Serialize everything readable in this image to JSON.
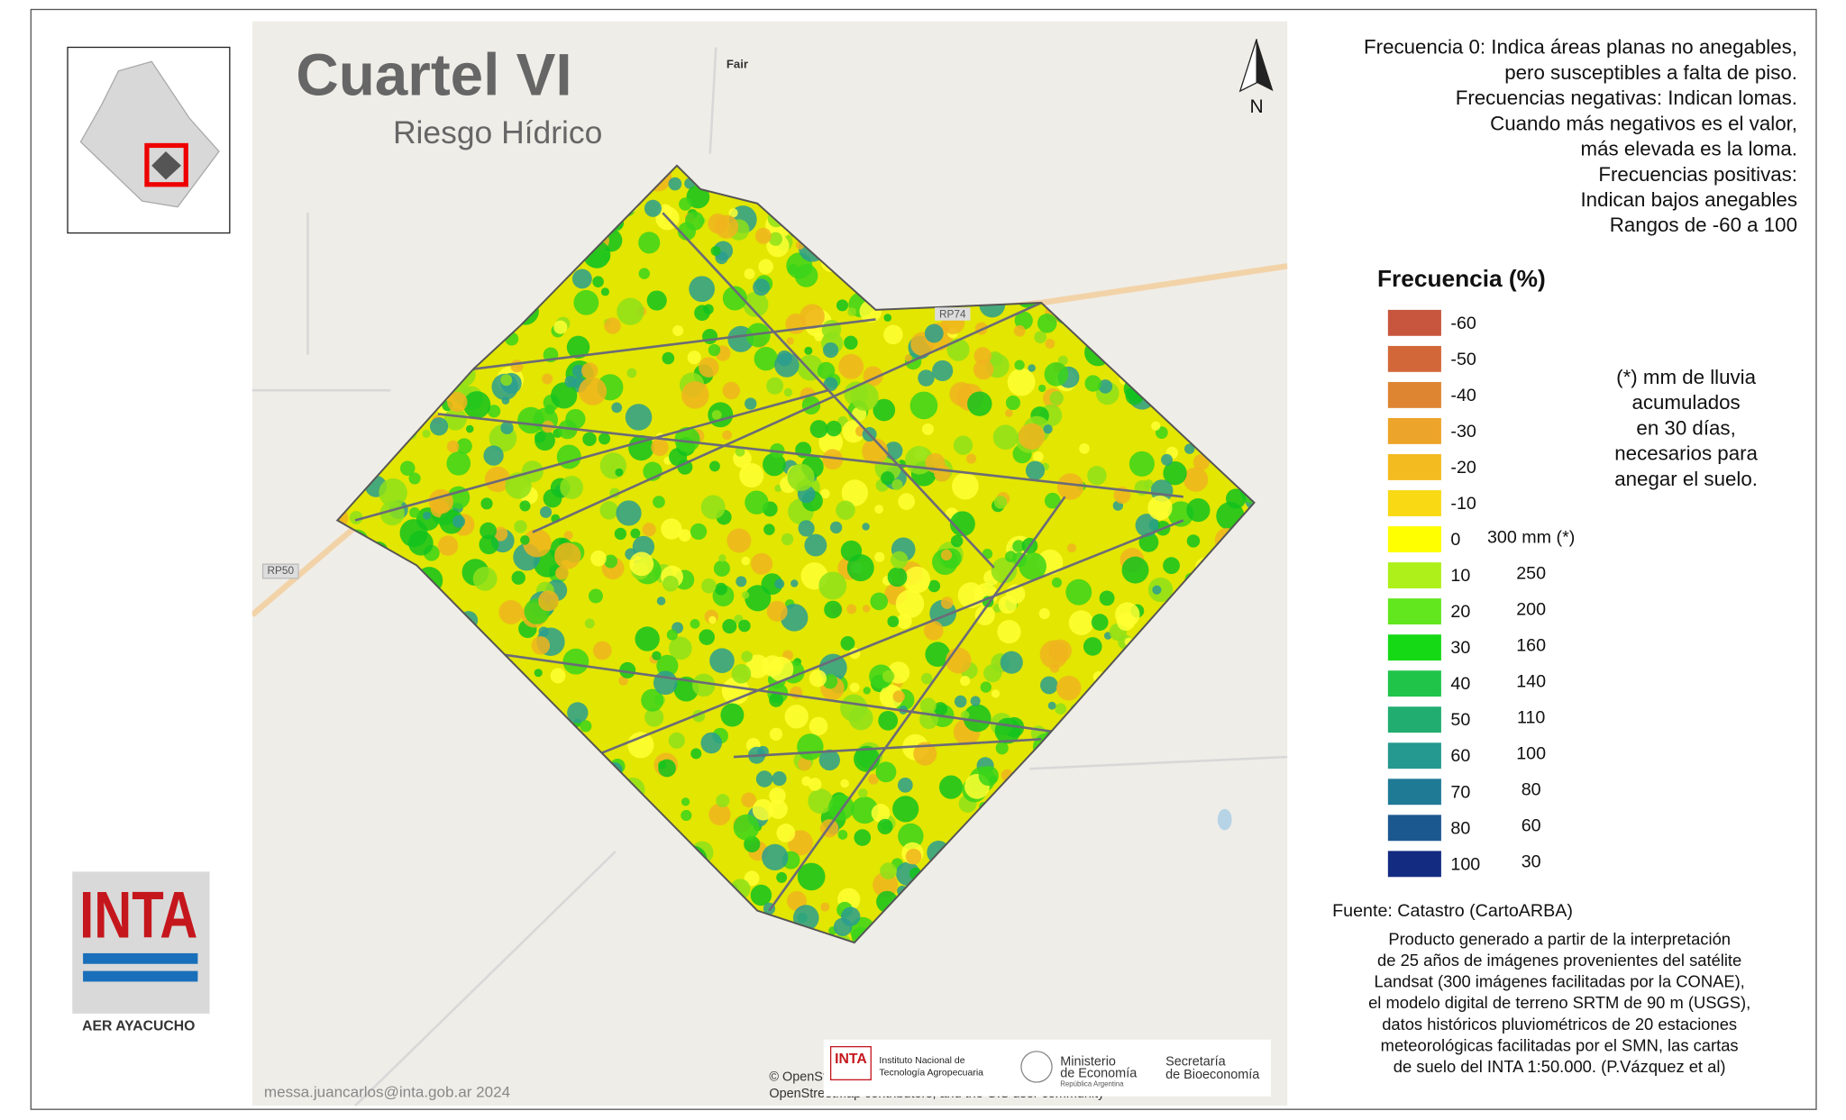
{
  "header": {
    "title": "Cuartel VI",
    "subtitle": "Riesgo Hídrico"
  },
  "map": {
    "place": "Fair",
    "north": "N",
    "roads": [
      "RP74",
      "RP50"
    ],
    "attribution": [
      "© OpenStreetMap",
      "OpenStreetMap contributors, and the GIS user community"
    ],
    "credit": "messa.juancarlos@inta.gob.ar 2024"
  },
  "description": [
    "Frecuencia 0: Indica áreas planas no anegables,",
    "pero susceptibles a falta de piso.",
    "Frecuencias negativas: Indican lomas.",
    "Cuando más negativos es el valor,",
    "más elevada es la loma.",
    "Frecuencias positivas:",
    "Indican bajos anegables",
    "Rangos de -60 a 100"
  ],
  "legend": {
    "title": "Frecuencia (%)",
    "items": [
      {
        "label": -60,
        "mm": null,
        "color": "#c8553d"
      },
      {
        "label": -50,
        "mm": null,
        "color": "#d2683a"
      },
      {
        "label": -40,
        "mm": null,
        "color": "#de8532"
      },
      {
        "label": -30,
        "mm": null,
        "color": "#eda42a"
      },
      {
        "label": -20,
        "mm": null,
        "color": "#f3bb1f"
      },
      {
        "label": -10,
        "mm": null,
        "color": "#f8d914"
      },
      {
        "label": 0,
        "mm": "300 mm (*)",
        "color": "#ffff00"
      },
      {
        "label": 10,
        "mm": 250,
        "color": "#aef01a"
      },
      {
        "label": 20,
        "mm": 200,
        "color": "#62e61e"
      },
      {
        "label": 30,
        "mm": 160,
        "color": "#16d916"
      },
      {
        "label": 40,
        "mm": 140,
        "color": "#1fc449"
      },
      {
        "label": 50,
        "mm": 110,
        "color": "#21ad70"
      },
      {
        "label": 60,
        "mm": 100,
        "color": "#25988f"
      },
      {
        "label": 70,
        "mm": 80,
        "color": "#1f7a96"
      },
      {
        "label": 80,
        "mm": 60,
        "color": "#1c5890"
      },
      {
        "label": 100,
        "mm": 30,
        "color": "#132c82"
      }
    ],
    "footnote": [
      "(*) mm de lluvia",
      "acumulados",
      "en 30 días,",
      "necesarios para",
      "anegar el suelo."
    ]
  },
  "source": "Fuente: Catastro (CartoARBA)",
  "product": [
    "Producto generado a partir de la interpretación",
    "de 25 años de imágenes provenientes del satélite",
    "Landsat (300 imágenes facilitadas por la CONAE),",
    "el modelo digital de terreno SRTM de 90 m (USGS),",
    "datos históricos pluviométricos de 20 estaciones",
    "meteorológicas facilitadas por el SMN,  las cartas",
    "de suelo del INTA 1:50.000. (P.Vázquez et al)"
  ],
  "logo": {
    "name": "INTA",
    "office": "AER AYACUCHO"
  },
  "sponsors": {
    "inta": "INTA",
    "inta_name": [
      "Instituto Nacional de",
      "Tecnología Agropecuaria"
    ],
    "ministry": [
      "Ministerio",
      "de Economía",
      "República Argentina"
    ],
    "secretary": [
      "Secretaría",
      "de Bioeconomía"
    ]
  }
}
